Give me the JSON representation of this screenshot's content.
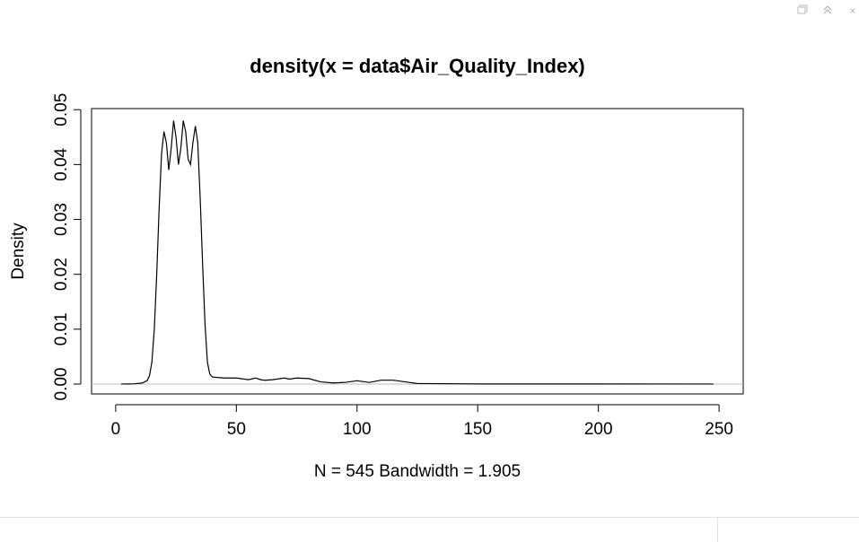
{
  "window_controls": {
    "icons": [
      "restore-icon",
      "collapse-icon",
      "close-icon"
    ],
    "close_glyph": "×"
  },
  "chart_data": {
    "type": "line",
    "title": "density(x = data$Air_Quality_Index)",
    "xlabel": "N = 545   Bandwidth = 1.905",
    "ylabel": "Density",
    "xlim": [
      -10,
      260
    ],
    "ylim": [
      -0.0018,
      0.0502
    ],
    "x_ticks": [
      0,
      50,
      100,
      150,
      200,
      250
    ],
    "x_tick_labels": [
      "0",
      "50",
      "100",
      "150",
      "200",
      "250"
    ],
    "y_ticks": [
      0,
      0.01,
      0.02,
      0.03,
      0.04,
      0.05
    ],
    "y_tick_labels": [
      "0.00",
      "0.01",
      "0.02",
      "0.03",
      "0.04",
      "0.05"
    ],
    "zero_line": true,
    "line_color": "#000000",
    "zero_line_color": "#bebebe",
    "series": [
      {
        "x": [
          2.3,
          5,
          8,
          11,
          13,
          14,
          15,
          16,
          17,
          18,
          19,
          20,
          21,
          22,
          23,
          24,
          25,
          26,
          27,
          28,
          29,
          30,
          31,
          32,
          33,
          34,
          35,
          36,
          37,
          38,
          39,
          40,
          42,
          45,
          50,
          55,
          58,
          60,
          62,
          65,
          70,
          72,
          75,
          80,
          85,
          90,
          95,
          100,
          105,
          110,
          115,
          120,
          125,
          150,
          200,
          247.7
        ],
        "y": [
          1e-05,
          2e-05,
          5e-05,
          0.0002,
          0.0006,
          0.0015,
          0.004,
          0.01,
          0.02,
          0.032,
          0.042,
          0.046,
          0.044,
          0.039,
          0.043,
          0.048,
          0.045,
          0.04,
          0.043,
          0.048,
          0.046,
          0.041,
          0.04,
          0.044,
          0.047,
          0.044,
          0.034,
          0.022,
          0.011,
          0.004,
          0.0018,
          0.0013,
          0.0012,
          0.0011,
          0.0011,
          0.0008,
          0.0011,
          0.0008,
          0.0007,
          0.0008,
          0.0011,
          0.0009,
          0.0011,
          0.001,
          0.0004,
          0.0002,
          0.0003,
          0.0006,
          0.0003,
          0.0007,
          0.0007,
          0.0004,
          0.0001,
          2e-05,
          2e-05,
          1e-05
        ]
      }
    ]
  }
}
